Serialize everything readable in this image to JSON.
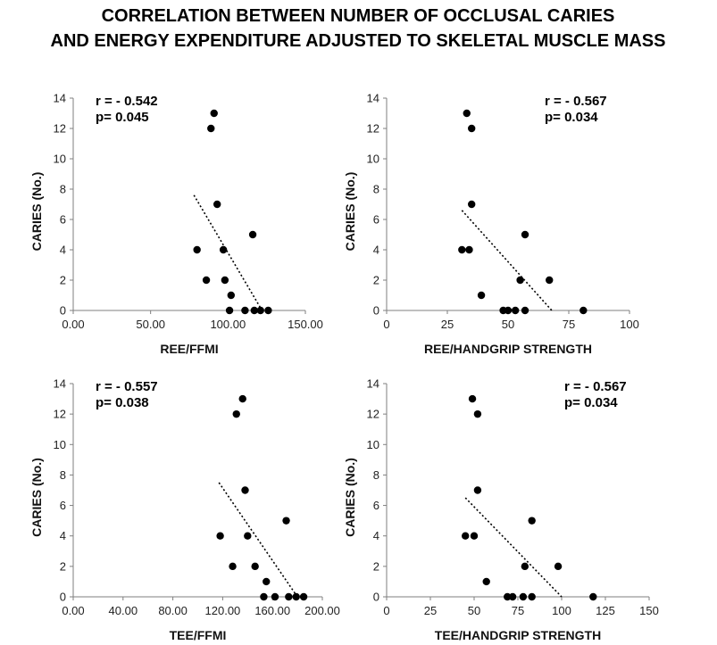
{
  "figure": {
    "title_line1": "CORRELATION BETWEEN NUMBER OF OCCLUSAL CARIES",
    "title_line2": "AND ENERGY EXPENDITURE ADJUSTED TO SKELETAL MUSCLE MASS"
  },
  "chart_data": [
    {
      "type": "scatter",
      "name": "ree-ffmi",
      "xlabel": "REE/FFMI",
      "ylabel": "CARIES (No.)",
      "xlim": [
        0,
        150
      ],
      "ylim": [
        0,
        14
      ],
      "x_ticks": [
        0,
        50,
        100,
        150
      ],
      "x_tick_labels": [
        "0.00",
        "50.00",
        "100.00",
        "150.00"
      ],
      "y_ticks": [
        0,
        2,
        4,
        6,
        8,
        10,
        12,
        14
      ],
      "y_tick_labels": [
        "0",
        "2",
        "4",
        "6",
        "8",
        "10",
        "12",
        "14"
      ],
      "stats": {
        "r": "r = - 0.542",
        "p": "p= 0.045",
        "position": "top-left"
      },
      "points": [
        {
          "x": 91,
          "y": 13
        },
        {
          "x": 89,
          "y": 12
        },
        {
          "x": 93,
          "y": 7
        },
        {
          "x": 116,
          "y": 5
        },
        {
          "x": 80,
          "y": 4
        },
        {
          "x": 97,
          "y": 4
        },
        {
          "x": 86,
          "y": 2
        },
        {
          "x": 98,
          "y": 2
        },
        {
          "x": 102,
          "y": 1
        },
        {
          "x": 101,
          "y": 0
        },
        {
          "x": 111,
          "y": 0
        },
        {
          "x": 117,
          "y": 0
        },
        {
          "x": 121,
          "y": 0
        },
        {
          "x": 126,
          "y": 0
        }
      ],
      "trend": {
        "x1": 78,
        "y1": 7.6,
        "x2": 122,
        "y2": 0
      }
    },
    {
      "type": "scatter",
      "name": "ree-handgrip",
      "xlabel": "REE/HANDGRIP STRENGTH",
      "ylabel": "CARIES (No.)",
      "xlim": [
        0,
        100
      ],
      "ylim": [
        0,
        14
      ],
      "x_ticks": [
        0,
        25,
        50,
        75,
        100
      ],
      "x_tick_labels": [
        "0",
        "25",
        "50",
        "75",
        "100"
      ],
      "y_ticks": [
        0,
        2,
        4,
        6,
        8,
        10,
        12,
        14
      ],
      "y_tick_labels": [
        "0",
        "2",
        "4",
        "6",
        "8",
        "10",
        "12",
        "14"
      ],
      "stats": {
        "r": "r = - 0.567",
        "p": "p= 0.034",
        "position": "top-right"
      },
      "points": [
        {
          "x": 33,
          "y": 13
        },
        {
          "x": 35,
          "y": 12
        },
        {
          "x": 35,
          "y": 7
        },
        {
          "x": 57,
          "y": 5
        },
        {
          "x": 31,
          "y": 4
        },
        {
          "x": 34,
          "y": 4
        },
        {
          "x": 55,
          "y": 2
        },
        {
          "x": 67,
          "y": 2
        },
        {
          "x": 39,
          "y": 1
        },
        {
          "x": 48,
          "y": 0
        },
        {
          "x": 50,
          "y": 0
        },
        {
          "x": 53,
          "y": 0
        },
        {
          "x": 57,
          "y": 0
        },
        {
          "x": 81,
          "y": 0
        }
      ],
      "trend": {
        "x1": 31,
        "y1": 6.6,
        "x2": 68,
        "y2": 0
      }
    },
    {
      "type": "scatter",
      "name": "tee-ffmi",
      "xlabel": "TEE/FFMI",
      "ylabel": "CARIES (No.)",
      "xlim": [
        0,
        200
      ],
      "ylim": [
        0,
        14
      ],
      "x_ticks": [
        0,
        40,
        80,
        120,
        160,
        200
      ],
      "x_tick_labels": [
        "0.00",
        "40.00",
        "80.00",
        "120.00",
        "160.00",
        "200.00"
      ],
      "y_ticks": [
        0,
        2,
        4,
        6,
        8,
        10,
        12,
        14
      ],
      "y_tick_labels": [
        "0",
        "2",
        "4",
        "6",
        "8",
        "10",
        "12",
        "14"
      ],
      "stats": {
        "r": "r = - 0.557",
        "p": "p= 0.038",
        "position": "top-left"
      },
      "points": [
        {
          "x": 136,
          "y": 13
        },
        {
          "x": 131,
          "y": 12
        },
        {
          "x": 138,
          "y": 7
        },
        {
          "x": 171,
          "y": 5
        },
        {
          "x": 118,
          "y": 4
        },
        {
          "x": 140,
          "y": 4
        },
        {
          "x": 128,
          "y": 2
        },
        {
          "x": 146,
          "y": 2
        },
        {
          "x": 155,
          "y": 1
        },
        {
          "x": 153,
          "y": 0
        },
        {
          "x": 162,
          "y": 0
        },
        {
          "x": 173,
          "y": 0
        },
        {
          "x": 179,
          "y": 0
        },
        {
          "x": 185,
          "y": 0
        }
      ],
      "trend": {
        "x1": 117,
        "y1": 7.5,
        "x2": 180,
        "y2": 0
      }
    },
    {
      "type": "scatter",
      "name": "tee-handgrip",
      "xlabel": "TEE/HANDGRIP STRENGTH",
      "ylabel": "CARIES (No.)",
      "xlim": [
        0,
        150
      ],
      "ylim": [
        0,
        14
      ],
      "x_ticks": [
        0,
        25,
        50,
        75,
        100,
        125,
        150
      ],
      "x_tick_labels": [
        "0",
        "25",
        "50",
        "75",
        "100",
        "125",
        "150"
      ],
      "y_ticks": [
        0,
        2,
        4,
        6,
        8,
        10,
        12,
        14
      ],
      "y_tick_labels": [
        "0",
        "2",
        "4",
        "6",
        "8",
        "10",
        "12",
        "14"
      ],
      "stats": {
        "r": "r = - 0.567",
        "p": "p= 0.034",
        "position": "top-right"
      },
      "points": [
        {
          "x": 49,
          "y": 13
        },
        {
          "x": 52,
          "y": 12
        },
        {
          "x": 52,
          "y": 7
        },
        {
          "x": 83,
          "y": 5
        },
        {
          "x": 45,
          "y": 4
        },
        {
          "x": 50,
          "y": 4
        },
        {
          "x": 79,
          "y": 2
        },
        {
          "x": 98,
          "y": 2
        },
        {
          "x": 57,
          "y": 1
        },
        {
          "x": 69,
          "y": 0
        },
        {
          "x": 72,
          "y": 0
        },
        {
          "x": 78,
          "y": 0
        },
        {
          "x": 83,
          "y": 0
        },
        {
          "x": 118,
          "y": 0
        }
      ],
      "trend": {
        "x1": 45,
        "y1": 6.5,
        "x2": 100,
        "y2": 0
      }
    }
  ]
}
